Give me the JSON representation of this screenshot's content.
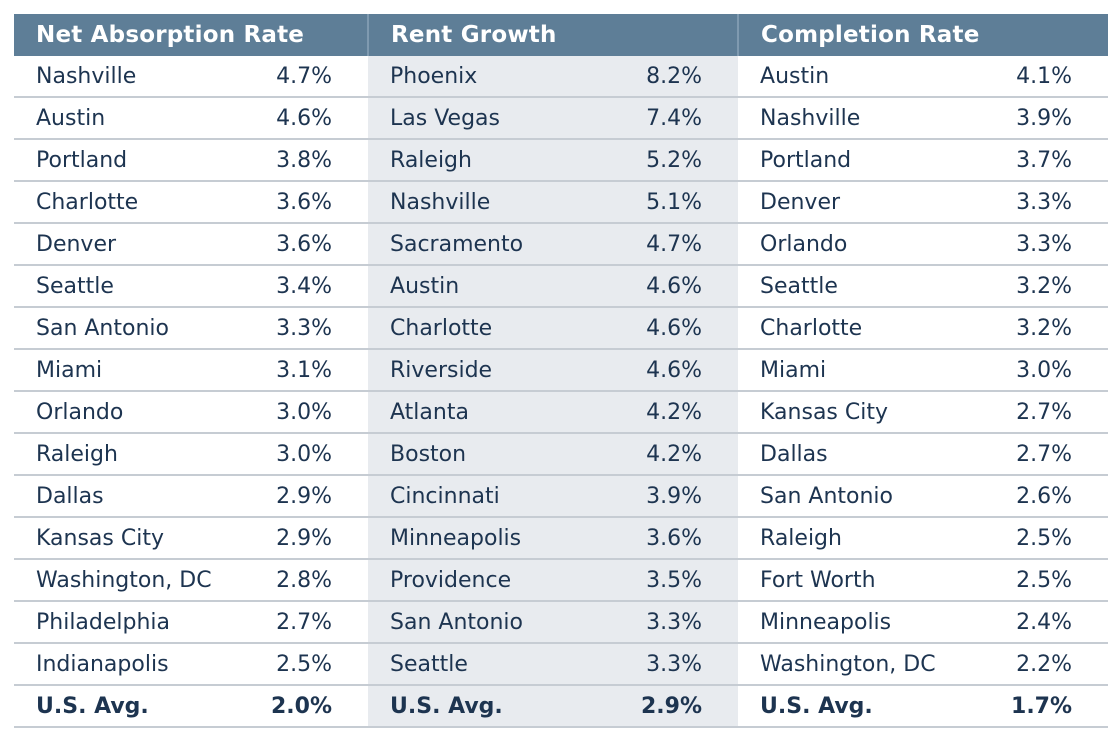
{
  "headers": [
    "Net Absorption Rate",
    "Rent Growth",
    "Completion Rate"
  ],
  "rows": [
    [
      {
        "city": "Nashville",
        "value": "4.7%"
      },
      {
        "city": "Phoenix",
        "value": "8.2%"
      },
      {
        "city": "Austin",
        "value": "4.1%"
      }
    ],
    [
      {
        "city": "Austin",
        "value": "4.6%"
      },
      {
        "city": "Las Vegas",
        "value": "7.4%"
      },
      {
        "city": "Nashville",
        "value": "3.9%"
      }
    ],
    [
      {
        "city": "Portland",
        "value": "3.8%"
      },
      {
        "city": "Raleigh",
        "value": "5.2%"
      },
      {
        "city": "Portland",
        "value": "3.7%"
      }
    ],
    [
      {
        "city": "Charlotte",
        "value": "3.6%"
      },
      {
        "city": "Nashville",
        "value": "5.1%"
      },
      {
        "city": "Denver",
        "value": "3.3%"
      }
    ],
    [
      {
        "city": "Denver",
        "value": "3.6%"
      },
      {
        "city": "Sacramento",
        "value": "4.7%"
      },
      {
        "city": "Orlando",
        "value": "3.3%"
      }
    ],
    [
      {
        "city": "Seattle",
        "value": "3.4%"
      },
      {
        "city": "Austin",
        "value": "4.6%"
      },
      {
        "city": "Seattle",
        "value": "3.2%"
      }
    ],
    [
      {
        "city": "San Antonio",
        "value": "3.3%"
      },
      {
        "city": "Charlotte",
        "value": "4.6%"
      },
      {
        "city": "Charlotte",
        "value": "3.2%"
      }
    ],
    [
      {
        "city": "Miami",
        "value": "3.1%"
      },
      {
        "city": "Riverside",
        "value": "4.6%"
      },
      {
        "city": "Miami",
        "value": "3.0%"
      }
    ],
    [
      {
        "city": "Orlando",
        "value": "3.0%"
      },
      {
        "city": "Atlanta",
        "value": "4.2%"
      },
      {
        "city": "Kansas City",
        "value": "2.7%"
      }
    ],
    [
      {
        "city": "Raleigh",
        "value": "3.0%"
      },
      {
        "city": "Boston",
        "value": "4.2%"
      },
      {
        "city": "Dallas",
        "value": "2.7%"
      }
    ],
    [
      {
        "city": "Dallas",
        "value": "2.9%"
      },
      {
        "city": "Cincinnati",
        "value": "3.9%"
      },
      {
        "city": "San Antonio",
        "value": "2.6%"
      }
    ],
    [
      {
        "city": "Kansas City",
        "value": "2.9%"
      },
      {
        "city": "Minneapolis",
        "value": "3.6%"
      },
      {
        "city": "Raleigh",
        "value": "2.5%"
      }
    ],
    [
      {
        "city": "Washington, DC",
        "value": "2.8%"
      },
      {
        "city": "Providence",
        "value": "3.5%"
      },
      {
        "city": "Fort Worth",
        "value": "2.5%"
      }
    ],
    [
      {
        "city": "Philadelphia",
        "value": "2.7%"
      },
      {
        "city": "San Antonio",
        "value": "3.3%"
      },
      {
        "city": "Minneapolis",
        "value": "2.4%"
      }
    ],
    [
      {
        "city": "Indianapolis",
        "value": "2.5%"
      },
      {
        "city": "Seattle",
        "value": "3.3%"
      },
      {
        "city": "Washington, DC",
        "value": "2.2%"
      }
    ]
  ],
  "average_row": [
    {
      "city": "U.S. Avg.",
      "value": "2.0%"
    },
    {
      "city": "U.S. Avg.",
      "value": "2.9%"
    },
    {
      "city": "U.S. Avg.",
      "value": "1.7%"
    }
  ],
  "colors": {
    "header_bg": "#5e7e97",
    "header_text": "#ffffff",
    "body_text": "#1d3450",
    "middle_column_bg": "#e8ebef",
    "row_divider": "#c6ccd3"
  }
}
